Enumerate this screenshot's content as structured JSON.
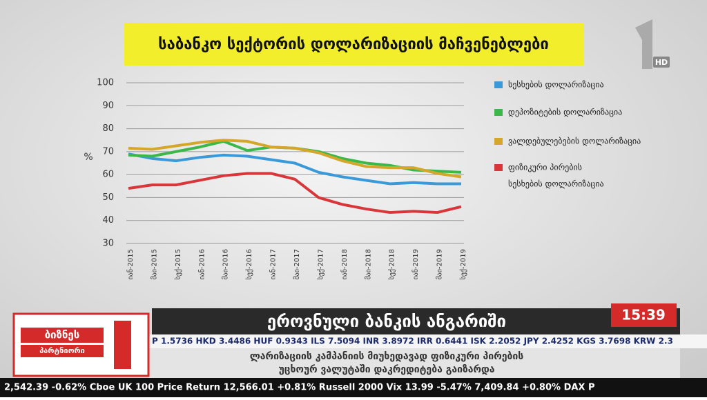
{
  "chart_data": {
    "type": "line",
    "title": "საბანკო სექტორის დოლარიზაციის მაჩვენებლები",
    "y_label": "%",
    "categories": [
      "იან-2015",
      "მაი-2015",
      "სექ-2015",
      "იან-2016",
      "მაი-2016",
      "სექ-2016",
      "იან-2017",
      "მაი-2017",
      "სექ-2017",
      "იან-2018",
      "მაი-2018",
      "სექ-2018",
      "იან-2019",
      "მაი-2019",
      "სექ-2019"
    ],
    "series": [
      {
        "name": "სესხების დოლარიზაცია",
        "color": "#3a9ad9",
        "values": [
          69,
          67,
          66,
          67.5,
          68.5,
          68,
          66.5,
          65,
          61,
          59,
          57.5,
          56,
          56.5,
          56,
          56
        ]
      },
      {
        "name": "დეპოზიტების დოლარიზაცია",
        "color": "#3cb84a",
        "values": [
          68.5,
          68,
          70,
          72,
          74.5,
          70.5,
          72,
          71.5,
          70,
          67,
          65,
          64,
          62,
          61.5,
          61
        ]
      },
      {
        "name": "ვალდებულებების დოლარიზაცია",
        "color": "#d4a62a",
        "values": [
          71.5,
          71,
          72.5,
          74,
          75,
          74.5,
          72,
          71.5,
          69.5,
          66,
          63.5,
          63,
          63,
          60.5,
          59
        ]
      },
      {
        "name": [
          "ფიზიკური პირების",
          "სესხების დოლარიზაცია"
        ],
        "color": "#d9363a",
        "values": [
          54,
          55.5,
          55.5,
          57.5,
          59.5,
          60.5,
          60.5,
          58,
          50,
          47,
          45,
          43.5,
          44,
          43.5,
          46
        ]
      }
    ],
    "ylim": [
      30,
      100
    ],
    "yticks": [
      30,
      40,
      50,
      60,
      70,
      80,
      90,
      100
    ],
    "grid": true
  },
  "overlay": {
    "channel_badge": "HD",
    "headline": "ეროვნული ბანკის ანგარიში",
    "clock": "15:39",
    "logo": [
      "ბიზნეს",
      "პარტნიორი"
    ],
    "currency_ticker": "P 1.5736   HKD 3.4486   HUF 0.9343   ILS 7.5094   INR 3.8972   IRR 0.6441   ISK 2.2052   JPY 2.4252   KGS 3.7698   KRW 2.3",
    "subheadline": [
      "ლარიზაციის კამპანიის მიუხედავად ფიზიკური პირების",
      "უცხოურ ვალუტაში დაკრედიტება გაიზარდა"
    ],
    "market_ticker": "2,542.39 -0.62%   Cboe UK 100 Price Return   12,566.01 +0.81%   Russell 2000   Vix   13.99 -5.47%   7,409.84 +0.80%   DAX P"
  }
}
